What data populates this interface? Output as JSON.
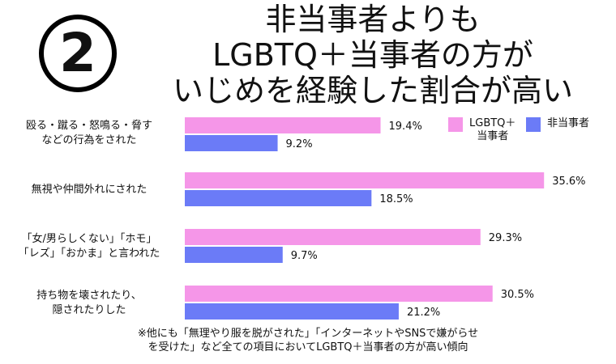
{
  "badge": "2",
  "title_lines": [
    "非当事者よりも",
    "LGBTQ＋当事者の方が",
    "いじめを経験した割合が高い"
  ],
  "chart_data": {
    "type": "bar",
    "orientation": "horizontal",
    "categories": [
      [
        "殴る・蹴る・怒鳴る・脅す",
        "などの行為をされた"
      ],
      [
        "無視や仲間外れにされた"
      ],
      [
        "「女/男らしくない」「ホモ」",
        "「レズ」「おかま」と言われた"
      ],
      [
        "持ち物を壊されたり、",
        "隠されたりした"
      ]
    ],
    "series": [
      {
        "name": "LGBTQ＋当事者",
        "name_lines": [
          "LGBTQ＋",
          "当事者"
        ],
        "color": "#f596e8",
        "values": [
          19.4,
          35.6,
          29.3,
          30.5
        ],
        "labels": [
          "19.4%",
          "35.6%",
          "29.3%",
          "30.5%"
        ]
      },
      {
        "name": "非当事者",
        "name_lines": [
          "非当事者"
        ],
        "color": "#6b7bf7",
        "values": [
          9.2,
          18.5,
          9.7,
          21.2
        ],
        "labels": [
          "9.2%",
          "18.5%",
          "9.7%",
          "21.2%"
        ]
      }
    ],
    "unit": "%",
    "xlim": [
      0,
      36
    ],
    "legend_position": "top-right",
    "grid": false
  },
  "note": [
    "※他にも「無理やり服を脱がされた」「インターネットやSNSで嫌がらせ",
    "を受けた」など全ての項目においてLGBTQ＋当事者の方が高い傾向"
  ]
}
